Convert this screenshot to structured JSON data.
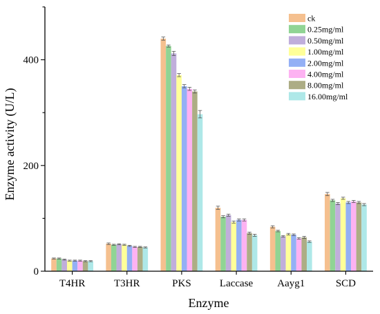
{
  "chart_data": {
    "type": "bar",
    "xlabel": "Enzyme",
    "ylabel": "Enzyme activity (U/L)",
    "ylim": [
      0,
      500
    ],
    "yticks": [
      0,
      200,
      400
    ],
    "grid": false,
    "legend_position": "top-right",
    "categories": [
      "T4HR",
      "T3HR",
      "PKS",
      "Laccase",
      "Aayg1",
      "SCD"
    ],
    "series": [
      {
        "name": "ck",
        "color": "#F5C08F",
        "values": [
          24,
          52,
          440,
          120,
          84,
          146
        ],
        "errors": [
          1,
          1.5,
          3,
          3,
          2,
          3
        ]
      },
      {
        "name": "0.25mg/ml",
        "color": "#90D494",
        "values": [
          24,
          50,
          426,
          103,
          76,
          134
        ],
        "errors": [
          1,
          1,
          2,
          2,
          1.5,
          2
        ]
      },
      {
        "name": "0.50mg/ml",
        "color": "#C0AEDB",
        "values": [
          22,
          51,
          412,
          106,
          66,
          128
        ],
        "errors": [
          1,
          1,
          4,
          2,
          1.5,
          2
        ]
      },
      {
        "name": "1.00mg/ml",
        "color": "#FFFF99",
        "values": [
          20,
          50,
          371,
          93,
          70,
          138
        ],
        "errors": [
          1,
          1,
          3,
          2,
          1.5,
          2
        ]
      },
      {
        "name": "2.00mg/ml",
        "color": "#94B0F5",
        "values": [
          20,
          48,
          350,
          97,
          69,
          130
        ],
        "errors": [
          1,
          1,
          3,
          2,
          1.5,
          2
        ]
      },
      {
        "name": "4.00mg/ml",
        "color": "#FDB2F2",
        "values": [
          20,
          46,
          345,
          97,
          62,
          132
        ],
        "errors": [
          1,
          1,
          3,
          2,
          1.5,
          2
        ]
      },
      {
        "name": "8.00mg/ml",
        "color": "#ADAD85",
        "values": [
          19,
          46,
          340,
          72,
          64,
          130
        ],
        "errors": [
          1,
          1,
          3,
          2,
          2,
          2
        ]
      },
      {
        "name": "16.00mg/ml",
        "color": "#AEE8E8",
        "values": [
          19,
          45,
          297,
          68,
          56,
          126
        ],
        "errors": [
          1,
          1,
          7,
          2,
          1.5,
          2
        ]
      }
    ]
  }
}
